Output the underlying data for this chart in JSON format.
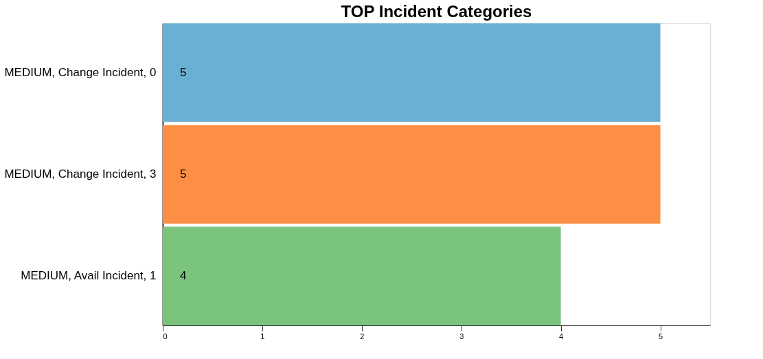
{
  "chart_data": {
    "type": "bar",
    "orientation": "horizontal",
    "title": "TOP Incident Categories",
    "categories": [
      "MEDIUM, Change Incident, 0",
      "MEDIUM, Change Incident, 3",
      "MEDIUM, Avail Incident, 1"
    ],
    "values": [
      5,
      5,
      4
    ],
    "colors": [
      "#6aafd4",
      "#fd8f45",
      "#7bc47c"
    ],
    "xlim": [
      0,
      5.5
    ],
    "xticks": [
      0,
      1,
      2,
      3,
      4,
      5
    ],
    "data_labels": true,
    "grid": false,
    "legend": false
  }
}
